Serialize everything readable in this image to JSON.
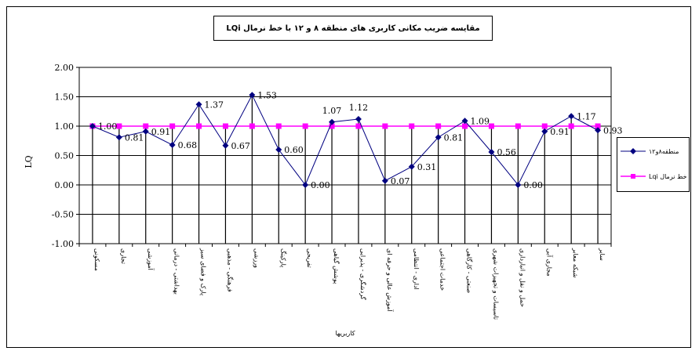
{
  "chart_data": {
    "type": "line",
    "title": "مقایسه ضریب مکانی کاربری های منطقه ۸ و ۱۲ با خط نرمال LQi",
    "xlabel": "کاربریها",
    "ylabel": "LQ",
    "ylim": [
      -1.0,
      2.0
    ],
    "yticks": [
      "2.00",
      "1.50",
      "1.00",
      "0.50",
      "0.00",
      "-0.50",
      "-1.00"
    ],
    "grid": true,
    "legend_position": "right",
    "categories": [
      "مسکونی",
      "تجاری",
      "آموزشی",
      "بهداشتی - درمانی",
      "پارک و فضای سبز",
      "فرهنگی - مذهبی",
      "ورزشی",
      "پارکینگ",
      "تفریحی",
      "پوشش گیاهی",
      "گردشگری - پذیرایی",
      "آموزش عالی و حرفه ای",
      "اداری - انتظامی",
      "خدمات اجتماعی",
      "صنعتی - کارگاهی",
      "تاسیسات و تجهیزات شهری",
      "حمل و نقل و انبارداری",
      "مجاری آبی",
      "شبکه معابر",
      "سایر"
    ],
    "series": [
      {
        "name": "منطقه۸و۱۲",
        "color": "#000080",
        "marker": "diamond",
        "values": [
          1.0,
          0.81,
          0.91,
          0.68,
          1.37,
          0.67,
          1.53,
          0.6,
          0.0,
          1.07,
          1.12,
          0.07,
          0.31,
          0.81,
          1.09,
          0.56,
          0.0,
          0.91,
          1.17,
          0.93
        ],
        "labels": [
          "1.00",
          "0.81",
          "0.91",
          "0.68",
          "1.37",
          "0.67",
          "1.53",
          "0.60",
          "0.00",
          "1.07",
          "1.12",
          "0.07",
          "0.31",
          "0.81",
          "1.09",
          "0.56",
          "0.00",
          "0.91",
          "1.17",
          "0.93"
        ]
      },
      {
        "name": "خط نرمال Lqi",
        "color": "#ff00ff",
        "marker": "square",
        "values": [
          1,
          1,
          1,
          1,
          1,
          1,
          1,
          1,
          1,
          1,
          1,
          1,
          1,
          1,
          1,
          1,
          1,
          1,
          1,
          1
        ]
      }
    ]
  }
}
